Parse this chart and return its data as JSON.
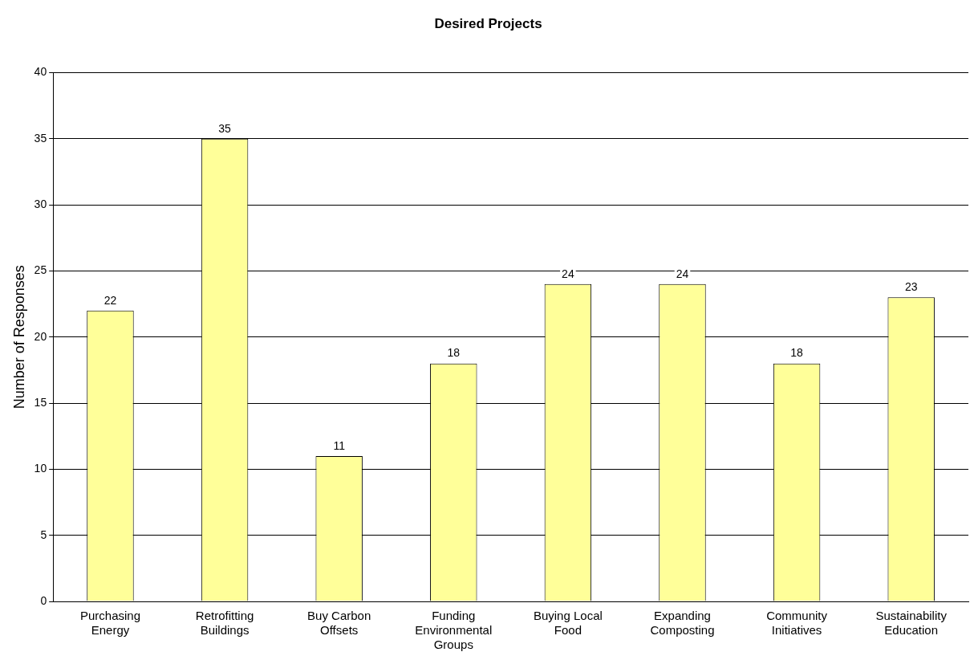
{
  "chart_data": {
    "type": "bar",
    "title": "Desired Projects",
    "ylabel": "Number of Responses",
    "categories": [
      "Purchasing Energy",
      "Retrofitting Buildings",
      "Buy Carbon Offsets",
      "Funding Environmental Groups",
      "Buying Local Food",
      "Expanding Composting",
      "Community Initiatives",
      "Sustainability Education"
    ],
    "values": [
      22,
      35,
      11,
      18,
      24,
      24,
      18,
      23
    ],
    "color": "#ffff99",
    "ylim": [
      0,
      40
    ],
    "yticks": [
      0,
      5,
      10,
      15,
      20,
      25,
      30,
      35,
      40
    ],
    "grid": "y",
    "data_labels": true,
    "legend": false
  }
}
